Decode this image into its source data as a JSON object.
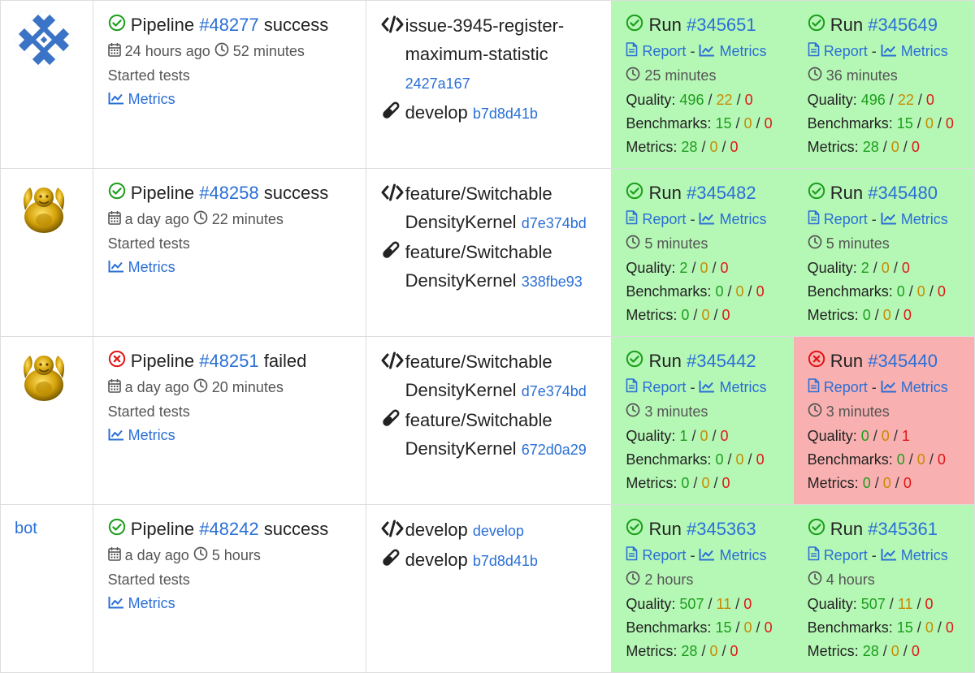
{
  "rows": [
    {
      "avatar_type": "image",
      "avatar_icon": "diamond-grid-avatar",
      "pipeline": {
        "label": "Pipeline",
        "number": "#48277",
        "status": "success",
        "status_icon": "check-circle-icon",
        "age": "24 hours ago",
        "duration": "52 minutes",
        "note": "Started tests",
        "metrics_label": "Metrics"
      },
      "branch": {
        "source_name": "issue-3945-register-maximum-statistic",
        "source_sha": "2427a167",
        "target_name": "develop",
        "target_sha": "b7d8d41b"
      },
      "runs": [
        {
          "status": "success",
          "number": "#345651",
          "report": "Report",
          "metrics": "Metrics",
          "duration": "25 minutes",
          "quality": [
            "496",
            "22",
            "0"
          ],
          "benchmarks": [
            "15",
            "0",
            "0"
          ],
          "metrics_vals": [
            "28",
            "0",
            "0"
          ]
        },
        {
          "status": "success",
          "number": "#345649",
          "report": "Report",
          "metrics": "Metrics",
          "duration": "36 minutes",
          "quality": [
            "496",
            "22",
            "0"
          ],
          "benchmarks": [
            "15",
            "0",
            "0"
          ],
          "metrics_vals": [
            "28",
            "0",
            "0"
          ]
        }
      ]
    },
    {
      "avatar_type": "image",
      "avatar_icon": "golden-figure-avatar",
      "pipeline": {
        "label": "Pipeline",
        "number": "#48258",
        "status": "success",
        "status_icon": "check-circle-icon",
        "age": "a day ago",
        "duration": "22 minutes",
        "note": "Started tests",
        "metrics_label": "Metrics"
      },
      "branch": {
        "source_name": "feature/Switchable DensityKernel",
        "source_sha": "d7e374bd",
        "target_name": "feature/Switchable DensityKernel",
        "target_sha": "338fbe93"
      },
      "runs": [
        {
          "status": "success",
          "number": "#345482",
          "report": "Report",
          "metrics": "Metrics",
          "duration": "5 minutes",
          "quality": [
            "2",
            "0",
            "0"
          ],
          "benchmarks": [
            "0",
            "0",
            "0"
          ],
          "metrics_vals": [
            "0",
            "0",
            "0"
          ]
        },
        {
          "status": "success",
          "number": "#345480",
          "report": "Report",
          "metrics": "Metrics",
          "duration": "5 minutes",
          "quality": [
            "2",
            "0",
            "0"
          ],
          "benchmarks": [
            "0",
            "0",
            "0"
          ],
          "metrics_vals": [
            "0",
            "0",
            "0"
          ]
        }
      ]
    },
    {
      "avatar_type": "image",
      "avatar_icon": "golden-figure-avatar",
      "pipeline": {
        "label": "Pipeline",
        "number": "#48251",
        "status": "failed",
        "status_icon": "x-circle-icon",
        "age": "a day ago",
        "duration": "20 minutes",
        "note": "Started tests",
        "metrics_label": "Metrics"
      },
      "branch": {
        "source_name": "feature/Switchable DensityKernel",
        "source_sha": "d7e374bd",
        "target_name": "feature/Switchable DensityKernel",
        "target_sha": "672d0a29"
      },
      "runs": [
        {
          "status": "success",
          "number": "#345442",
          "report": "Report",
          "metrics": "Metrics",
          "duration": "3 minutes",
          "quality": [
            "1",
            "0",
            "0"
          ],
          "benchmarks": [
            "0",
            "0",
            "0"
          ],
          "metrics_vals": [
            "0",
            "0",
            "0"
          ]
        },
        {
          "status": "failed",
          "number": "#345440",
          "report": "Report",
          "metrics": "Metrics",
          "duration": "3 minutes",
          "quality": [
            "0",
            "0",
            "1"
          ],
          "benchmarks": [
            "0",
            "0",
            "0"
          ],
          "metrics_vals": [
            "0",
            "0",
            "0"
          ]
        }
      ]
    },
    {
      "avatar_type": "text",
      "avatar_text": "bot",
      "pipeline": {
        "label": "Pipeline",
        "number": "#48242",
        "status": "success",
        "status_icon": "check-circle-icon",
        "age": "a day ago",
        "duration": "5 hours",
        "note": "Started tests",
        "metrics_label": "Metrics"
      },
      "branch": {
        "source_name": "develop",
        "source_sha": "develop",
        "target_name": "develop",
        "target_sha": "b7d8d41b"
      },
      "runs": [
        {
          "status": "success",
          "number": "#345363",
          "report": "Report",
          "metrics": "Metrics",
          "duration": "2 hours",
          "quality": [
            "507",
            "11",
            "0"
          ],
          "benchmarks": [
            "15",
            "0",
            "0"
          ],
          "metrics_vals": [
            "28",
            "0",
            "0"
          ]
        },
        {
          "status": "success",
          "number": "#345361",
          "report": "Report",
          "metrics": "Metrics",
          "duration": "4 hours",
          "quality": [
            "507",
            "11",
            "0"
          ],
          "benchmarks": [
            "15",
            "0",
            "0"
          ],
          "metrics_vals": [
            "28",
            "0",
            "0"
          ]
        }
      ]
    }
  ],
  "labels": {
    "run": "Run",
    "quality": "Quality:",
    "benchmarks": "Benchmarks:",
    "metrics": "Metrics:",
    "dash": "-",
    "slash": "/"
  },
  "colors": {
    "success_bg": "#b5f7b5",
    "failed_bg": "#f9b0b0",
    "link": "#2a6fd6",
    "good": "#1c9e1c",
    "warn": "#c88a00",
    "bad": "#e01616"
  }
}
